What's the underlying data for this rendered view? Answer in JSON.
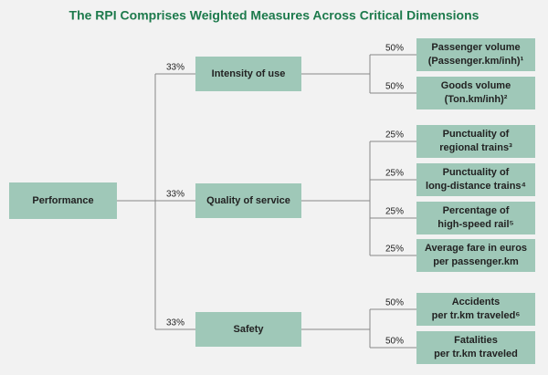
{
  "title": "The RPI Comprises Weighted Measures Across Critical Dimensions",
  "root": {
    "label": "Performance"
  },
  "branches": [
    {
      "weight": "33%",
      "label": "Intensity of use",
      "children": [
        {
          "weight": "50%",
          "lines": [
            "Passenger volume",
            "(Passenger.km/inh)¹"
          ]
        },
        {
          "weight": "50%",
          "lines": [
            "Goods volume",
            "(Ton.km/inh)²"
          ]
        }
      ]
    },
    {
      "weight": "33%",
      "label": "Quality of service",
      "children": [
        {
          "weight": "25%",
          "lines": [
            "Punctuality of",
            "regional trains³"
          ]
        },
        {
          "weight": "25%",
          "lines": [
            "Punctuality of",
            "long-distance trains⁴"
          ]
        },
        {
          "weight": "25%",
          "lines": [
            "Percentage of",
            "high-speed rail⁵"
          ]
        },
        {
          "weight": "25%",
          "lines": [
            "Average fare in euros",
            "per passenger.km"
          ]
        }
      ]
    },
    {
      "weight": "33%",
      "label": "Safety",
      "children": [
        {
          "weight": "50%",
          "lines": [
            "Accidents",
            "per tr.km traveled⁶"
          ]
        },
        {
          "weight": "50%",
          "lines": [
            "Fatalities",
            "per tr.km traveled"
          ]
        }
      ]
    }
  ]
}
